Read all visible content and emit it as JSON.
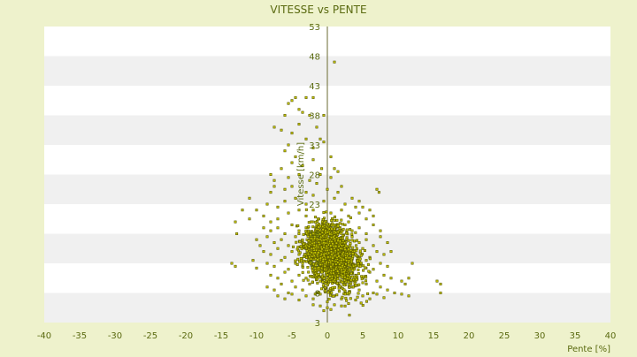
{
  "colors": {
    "background": "#eef2cc",
    "plot_band_light": "#ffffff",
    "plot_band_dark": "#f0f0f0",
    "marker_fill": "#c8c800",
    "marker_stroke": "#5a5a00",
    "text": "#5a6a10"
  },
  "chart_data": {
    "type": "scatter",
    "title": "VITESSE vs PENTE",
    "xlabel": "Pente [%]",
    "ylabel": "Vitesse [km/h]",
    "xlim": [
      -40,
      40
    ],
    "ylim": [
      3,
      53
    ],
    "x_ticks": [
      "-40",
      "-35",
      "-30",
      "-25",
      "-20",
      "-15",
      "-10",
      "-5",
      "0",
      "5",
      "10",
      "15",
      "20",
      "25",
      "30",
      "35",
      "40"
    ],
    "y_ticks": [
      "3",
      "8",
      "13",
      "18",
      "23",
      "28",
      "33",
      "38",
      "43",
      "48",
      "53"
    ],
    "grid": "horizontal alternating bands",
    "legend": "none",
    "series": [
      {
        "points": [
          [
            1,
            47
          ],
          [
            -5,
            40.5
          ],
          [
            -4.5,
            41
          ],
          [
            -3,
            41
          ],
          [
            -2,
            41
          ],
          [
            -4,
            39
          ],
          [
            -5.5,
            40
          ],
          [
            -6,
            38
          ],
          [
            -3.5,
            38.5
          ],
          [
            -2.5,
            38
          ],
          [
            -7.5,
            36
          ],
          [
            -6.5,
            35.5
          ],
          [
            -5,
            35
          ],
          [
            -4,
            36.5
          ],
          [
            -1.5,
            36
          ],
          [
            -0.5,
            38
          ],
          [
            -3,
            34
          ],
          [
            -5.5,
            33
          ],
          [
            -6,
            32
          ],
          [
            -1,
            34
          ],
          [
            -4.5,
            31
          ],
          [
            -2,
            32.5
          ],
          [
            -0.5,
            33.5
          ],
          [
            -6.5,
            29
          ],
          [
            -5,
            30
          ],
          [
            -3.5,
            29.5
          ],
          [
            -2,
            30.5
          ],
          [
            0.5,
            31
          ],
          [
            -0.8,
            29
          ],
          [
            1,
            29
          ],
          [
            -8,
            28
          ],
          [
            -7.5,
            27
          ],
          [
            -5.5,
            27.5
          ],
          [
            -4,
            28
          ],
          [
            -2.5,
            27
          ],
          [
            -1,
            28
          ],
          [
            0.5,
            27.5
          ],
          [
            1.5,
            28.5
          ],
          [
            -8,
            25
          ],
          [
            -7.5,
            26
          ],
          [
            -6,
            25.5
          ],
          [
            -5,
            26
          ],
          [
            -3,
            25
          ],
          [
            -1.5,
            26.5
          ],
          [
            0,
            25.5
          ],
          [
            1.5,
            25
          ],
          [
            2,
            26
          ],
          [
            -8.5,
            23
          ],
          [
            -7,
            22.5
          ],
          [
            -6,
            23.5
          ],
          [
            -4.5,
            24
          ],
          [
            -3,
            23
          ],
          [
            -2,
            24.5
          ],
          [
            -0.5,
            23.5
          ],
          [
            1,
            24
          ],
          [
            2.5,
            23
          ],
          [
            3.5,
            24
          ],
          [
            4.5,
            23.5
          ],
          [
            5,
            22.5
          ],
          [
            6,
            22
          ],
          [
            7,
            25.5
          ],
          [
            7.3,
            25
          ],
          [
            -11,
            24
          ],
          [
            -10,
            22
          ],
          [
            -12,
            22
          ],
          [
            -13,
            20
          ],
          [
            -12.8,
            18
          ],
          [
            -11,
            20.5
          ],
          [
            -9,
            21
          ],
          [
            -8,
            20
          ],
          [
            -7,
            20.5
          ],
          [
            -5.5,
            21.5
          ],
          [
            -4,
            22
          ],
          [
            -3,
            21
          ],
          [
            -2,
            22
          ],
          [
            0.5,
            21.5
          ],
          [
            2,
            22
          ],
          [
            3,
            21
          ],
          [
            4.5,
            21.5
          ],
          [
            5.5,
            20.5
          ],
          [
            6.5,
            21
          ],
          [
            4,
            22.5
          ],
          [
            3,
            20
          ],
          [
            -9,
            19
          ],
          [
            -8,
            18.5
          ],
          [
            -7,
            19
          ],
          [
            -6,
            18
          ],
          [
            -5,
            19.5
          ],
          [
            -4,
            18.5
          ],
          [
            -3,
            19
          ],
          [
            -2.5,
            18
          ],
          [
            -1.5,
            19.5
          ],
          [
            -0.5,
            18.5
          ],
          [
            0.5,
            19
          ],
          [
            1.5,
            18.2
          ],
          [
            2.5,
            19.5
          ],
          [
            3.5,
            18.5
          ],
          [
            4.5,
            19
          ],
          [
            5.5,
            18
          ],
          [
            6.5,
            19.5
          ],
          [
            7.5,
            18.5
          ],
          [
            -10,
            17
          ],
          [
            -9.5,
            16
          ],
          [
            -8.5,
            17.5
          ],
          [
            -7.5,
            16.5
          ],
          [
            -6.5,
            17
          ],
          [
            -5.5,
            16
          ],
          [
            -4.5,
            17.5
          ],
          [
            -3.5,
            16.5
          ],
          [
            -2.5,
            17
          ],
          [
            -1.5,
            16
          ],
          [
            -0.5,
            17.5
          ],
          [
            0.5,
            16.5
          ],
          [
            1.5,
            17
          ],
          [
            2.5,
            16
          ],
          [
            3.5,
            17.5
          ],
          [
            4.5,
            16.5
          ],
          [
            5.5,
            17
          ],
          [
            6.5,
            16
          ],
          [
            7.5,
            17.5
          ],
          [
            8.5,
            16.5
          ],
          [
            -9,
            15
          ],
          [
            -8,
            14.5
          ],
          [
            -7,
            15.5
          ],
          [
            -6,
            14
          ],
          [
            -5,
            15
          ],
          [
            -4,
            14.5
          ],
          [
            -3,
            15.5
          ],
          [
            -2,
            14
          ],
          [
            -1,
            15
          ],
          [
            0,
            14.5
          ],
          [
            1,
            15.5
          ],
          [
            2,
            14
          ],
          [
            3,
            15
          ],
          [
            4,
            14.5
          ],
          [
            5,
            15.5
          ],
          [
            6,
            14
          ],
          [
            7,
            15
          ],
          [
            8,
            14.5
          ],
          [
            9,
            15
          ],
          [
            -8.5,
            13
          ],
          [
            -7.5,
            12.5
          ],
          [
            -6.5,
            13.5
          ],
          [
            -5.5,
            12
          ],
          [
            -4.5,
            13
          ],
          [
            -3.5,
            12.5
          ],
          [
            -2.5,
            13.5
          ],
          [
            -1.5,
            12
          ],
          [
            -0.5,
            13
          ],
          [
            0.5,
            12.5
          ],
          [
            1.5,
            13.5
          ],
          [
            2.5,
            12
          ],
          [
            3.5,
            13
          ],
          [
            4.5,
            12.5
          ],
          [
            5.5,
            13.5
          ],
          [
            6.5,
            12
          ],
          [
            7.5,
            13
          ],
          [
            8.5,
            12.5
          ],
          [
            12,
            13
          ],
          [
            -13.5,
            13
          ],
          [
            -13,
            12.5
          ],
          [
            -10,
            12.2
          ],
          [
            -10.5,
            13.5
          ],
          [
            -8,
            11
          ],
          [
            -7,
            10.5
          ],
          [
            -6,
            11.5
          ],
          [
            -5,
            10
          ],
          [
            -4,
            11
          ],
          [
            -3,
            10.5
          ],
          [
            -2,
            11.5
          ],
          [
            -1,
            10
          ],
          [
            0,
            11
          ],
          [
            1,
            10.5
          ],
          [
            2,
            11.5
          ],
          [
            3,
            10
          ],
          [
            4,
            11
          ],
          [
            5,
            10.5
          ],
          [
            6,
            11.5
          ],
          [
            7,
            10
          ],
          [
            8,
            11
          ],
          [
            9,
            10.5
          ],
          [
            10.5,
            10
          ],
          [
            11.5,
            10.5
          ],
          [
            11,
            9.5
          ],
          [
            15.5,
            10
          ],
          [
            16,
            9.5
          ],
          [
            -8.5,
            9
          ],
          [
            -7.5,
            8.5
          ],
          [
            -6.5,
            9.5
          ],
          [
            -5.5,
            8
          ],
          [
            -4.5,
            9
          ],
          [
            -3.5,
            8.5
          ],
          [
            -2.5,
            9.5
          ],
          [
            -1.5,
            8
          ],
          [
            -0.5,
            9
          ],
          [
            0.5,
            8.5
          ],
          [
            1.5,
            9.5
          ],
          [
            2.5,
            8
          ],
          [
            3.5,
            9
          ],
          [
            4.5,
            8.5
          ],
          [
            5.5,
            9.5
          ],
          [
            6.5,
            8
          ],
          [
            7.5,
            9
          ],
          [
            8.5,
            8.5
          ],
          [
            9.5,
            8
          ],
          [
            10.5,
            7.8
          ],
          [
            11.5,
            7.5
          ],
          [
            16,
            8
          ],
          [
            -7,
            7.5
          ],
          [
            -6,
            7
          ],
          [
            -5,
            7.8
          ],
          [
            -4,
            6.8
          ],
          [
            -3,
            7.5
          ],
          [
            -2,
            7
          ],
          [
            -1,
            7.8
          ],
          [
            0,
            6.5
          ],
          [
            1,
            7.5
          ],
          [
            2,
            7
          ],
          [
            3,
            7.8
          ],
          [
            4,
            6.8
          ],
          [
            5,
            7.5
          ],
          [
            6,
            7
          ],
          [
            7,
            7.8
          ],
          [
            8,
            7.2
          ],
          [
            -2,
            6
          ],
          [
            -1,
            5.8
          ],
          [
            0,
            5.5
          ],
          [
            1,
            6
          ],
          [
            2,
            5.8
          ],
          [
            3,
            6.2
          ],
          [
            -0.5,
            5
          ],
          [
            0.5,
            5.2
          ]
        ]
      }
    ]
  }
}
